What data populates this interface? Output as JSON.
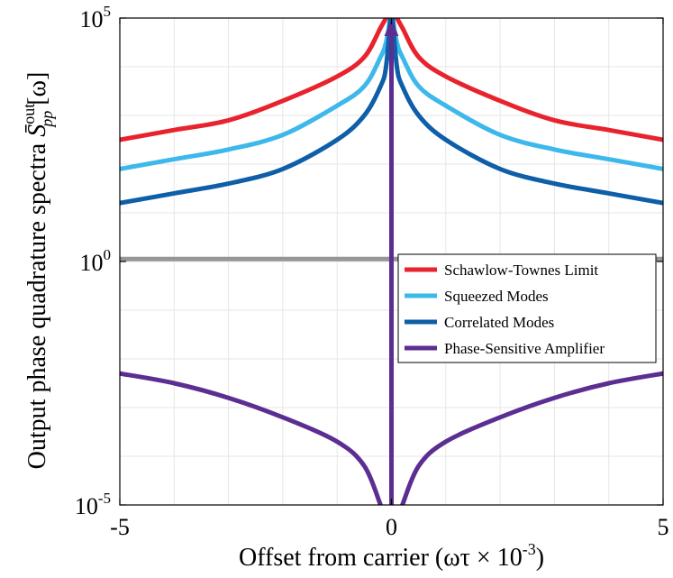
{
  "chart_data": {
    "type": "line",
    "yscale": "log",
    "xlim": [
      -5,
      5
    ],
    "ylim_exponent": [
      -5,
      5
    ],
    "xticks": [
      {
        "value": -5,
        "label": "-5"
      },
      {
        "value": 0,
        "label": "0"
      },
      {
        "value": 5,
        "label": "5"
      }
    ],
    "yticks": [
      {
        "exponent": -5,
        "base": "10",
        "exp": "-5"
      },
      {
        "exponent": 0,
        "base": "10",
        "exp": "0"
      },
      {
        "exponent": 5,
        "base": "10",
        "exp": "5"
      }
    ],
    "xlabel": {
      "main": "Offset from carrier (ωτ × 10",
      "sup": "-3",
      "tail": ")"
    },
    "ylabel": {
      "main": "Output phase quadrature spectra ",
      "sym": "S̄",
      "sup": "out",
      "sub": "pp",
      "tail": "[ω]"
    },
    "grid": true,
    "legend_position": "right-middle",
    "series": [
      {
        "name": "Schawlow-Townes Limit",
        "color": "#e8232e",
        "log10_values": [
          [
            -5,
            2.5
          ],
          [
            -4,
            2.7
          ],
          [
            -3,
            2.9
          ],
          [
            -2,
            3.3
          ],
          [
            -1,
            3.8
          ],
          [
            -0.5,
            4.2
          ],
          [
            -0.2,
            4.8
          ],
          [
            -0.1,
            5.0
          ]
        ]
      },
      {
        "name": "Squeezed Modes",
        "color": "#3db8ea",
        "log10_values": [
          [
            -5,
            1.9
          ],
          [
            -4,
            2.1
          ],
          [
            -3,
            2.3
          ],
          [
            -2,
            2.6
          ],
          [
            -1,
            3.2
          ],
          [
            -0.5,
            3.6
          ],
          [
            -0.2,
            4.2
          ],
          [
            -0.1,
            4.5
          ],
          [
            -0.02,
            5.0
          ]
        ]
      },
      {
        "name": "Correlated Modes",
        "color": "#0e5ea8",
        "log10_values": [
          [
            -5,
            1.2
          ],
          [
            -4,
            1.4
          ],
          [
            -3,
            1.6
          ],
          [
            -2,
            1.9
          ],
          [
            -1,
            2.5
          ],
          [
            -0.5,
            3.0
          ],
          [
            -0.2,
            3.6
          ],
          [
            -0.1,
            4.0
          ],
          [
            -0.02,
            5.0
          ]
        ]
      },
      {
        "name": "Phase-Sensitive Amplifier",
        "color": "#5c2e91",
        "log10_values": [
          [
            -5,
            -2.3
          ],
          [
            -4,
            -2.5
          ],
          [
            -3,
            -2.8
          ],
          [
            -2,
            -3.2
          ],
          [
            -1,
            -3.7
          ],
          [
            -0.5,
            -4.2
          ],
          [
            -0.2,
            -5.0
          ]
        ]
      }
    ],
    "reference_line": {
      "log10_value": 0.05,
      "color": "#969696"
    },
    "vertical_arrow": {
      "x": 0,
      "color": "#5c2e91"
    }
  }
}
